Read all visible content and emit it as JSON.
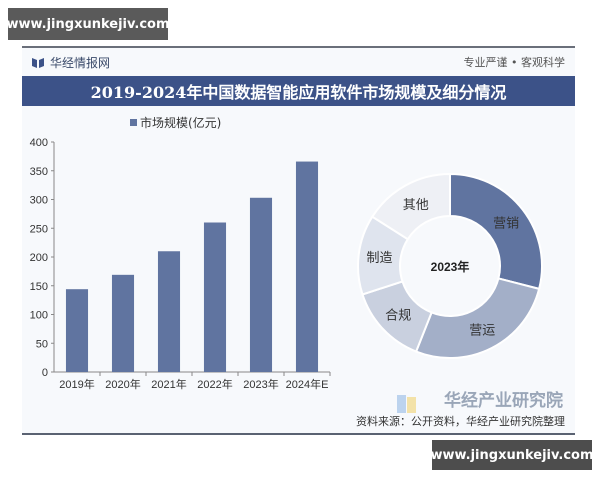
{
  "watermark_top": "www.jingxunkejiv.com",
  "watermark_bottom": "www.jingxunkejiv.com",
  "header": {
    "brand": "华经情报网",
    "motto": "专业严谨 • 客观科学",
    "title": "2019-2024年中国数据智能应用软件市场规模及细分情况"
  },
  "footer": {
    "institute": "华经产业研究院",
    "source": "资料来源：公开资料，华经产业研究院整理"
  },
  "colors": {
    "title_bg": "#3c5288",
    "bar": "#6074a0",
    "donut": [
      "#6074a0",
      "#a3afc8",
      "#c9d0df",
      "#dfe4ee",
      "#eef0f5"
    ]
  },
  "chart_data": [
    {
      "type": "bar",
      "title": "2019-2024年中国数据智能应用软件市场规模及细分情况",
      "legend": [
        "市场规模(亿元)"
      ],
      "legend_position": "top",
      "categories": [
        "2019年",
        "2020年",
        "2021年",
        "2022年",
        "2023年",
        "2024年E"
      ],
      "values": [
        144,
        169,
        210,
        260,
        303,
        366
      ],
      "xlabel": "",
      "ylabel": "市场规模(亿元)",
      "ylim": [
        0,
        400
      ],
      "yticks": [
        0,
        50,
        100,
        150,
        200,
        250,
        300,
        350,
        400
      ],
      "grid": false
    },
    {
      "type": "pie",
      "subtype": "donut",
      "center_label": "2023年",
      "labels": [
        "营销",
        "营运",
        "合规",
        "制造",
        "其他"
      ],
      "values": [
        29,
        27,
        14,
        14,
        16
      ],
      "unit": "% (estimated from slice angles)"
    }
  ]
}
